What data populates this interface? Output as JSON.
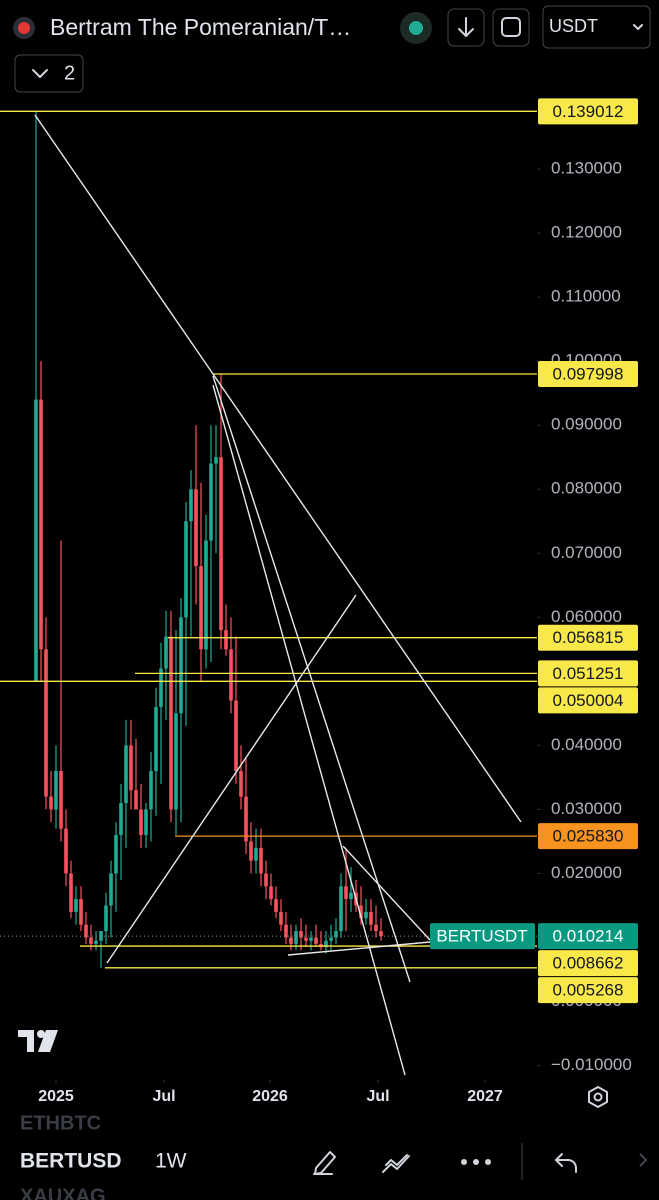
{
  "header": {
    "title": "Bertram The Pomeranian/T…",
    "badge": "2",
    "currency": "USDT"
  },
  "footer": {
    "symbols": [
      "ETHBTC",
      "BERTUSD",
      "XAUXAG"
    ],
    "interval": "1W"
  },
  "chart_data": {
    "type": "candlestick",
    "symbol": "BERTUSDT",
    "up_color": "#22ab94",
    "down_color": "#f7525f",
    "xlim": [
      -7.2,
      100.2
    ],
    "xticks": [
      {
        "value": 4,
        "label": "2025"
      },
      {
        "value": 25.6,
        "label": "Jul"
      },
      {
        "value": 46.8,
        "label": "2026"
      },
      {
        "value": 68.4,
        "label": "Jul"
      },
      {
        "value": 89.8,
        "label": "2027"
      }
    ],
    "ylim": [
      -0.01225,
      0.14156
    ],
    "yticks": [
      {
        "value": -0.01,
        "label": "−0.010000"
      },
      {
        "value": 0,
        "label": "0.000000"
      },
      {
        "value": 0.01,
        "label": "0.010000"
      },
      {
        "value": 0.02,
        "label": "0.020000"
      },
      {
        "value": 0.03,
        "label": "0.030000"
      },
      {
        "value": 0.04,
        "label": "0.040000"
      },
      {
        "value": 0.05,
        "label": "0.050000"
      },
      {
        "value": 0.06,
        "label": "0.060000"
      },
      {
        "value": 0.07,
        "label": "0.070000"
      },
      {
        "value": 0.08,
        "label": "0.080000"
      },
      {
        "value": 0.09,
        "label": "0.090000"
      },
      {
        "value": 0.1,
        "label": "0.100000"
      },
      {
        "value": 0.11,
        "label": "0.110000"
      },
      {
        "value": 0.12,
        "label": "0.120000"
      },
      {
        "value": 0.13,
        "label": "0.130000"
      }
    ],
    "candles": {
      "open": [
        0.05,
        0.094,
        0.055,
        0.032,
        0.03,
        0.036,
        0.027,
        0.02,
        0.014,
        0.016,
        0.012,
        0.01,
        0.009,
        0.0095,
        0.011,
        0.015,
        0.02,
        0.026,
        0.031,
        0.04,
        0.033,
        0.03,
        0.026,
        0.03,
        0.036,
        0.046,
        0.052,
        0.057,
        0.03,
        0.045,
        0.06,
        0.075,
        0.08,
        0.068,
        0.055,
        0.072,
        0.084,
        0.085,
        0.058,
        0.055,
        0.047,
        0.036,
        0.032,
        0.025,
        0.022,
        0.024,
        0.02,
        0.018,
        0.016,
        0.014,
        0.012,
        0.01,
        0.009,
        0.011,
        0.01,
        0.0095,
        0.01,
        0.009,
        0.0085,
        0.0095,
        0.01,
        0.011,
        0.018,
        0.016,
        0.017,
        0.015,
        0.013,
        0.014,
        0.012,
        0.011
      ],
      "high": [
        0.139012,
        0.1,
        0.06,
        0.036,
        0.04,
        0.072,
        0.03,
        0.022,
        0.018,
        0.018,
        0.014,
        0.012,
        0.011,
        0.011,
        0.017,
        0.022,
        0.028,
        0.034,
        0.044,
        0.044,
        0.041,
        0.034,
        0.031,
        0.039,
        0.049,
        0.056,
        0.061,
        0.061,
        0.058,
        0.063,
        0.078,
        0.083,
        0.09,
        0.081,
        0.076,
        0.09,
        0.09,
        0.097998,
        0.062,
        0.06,
        0.057,
        0.04,
        0.038,
        0.028,
        0.027,
        0.027,
        0.022,
        0.02,
        0.018,
        0.016,
        0.014,
        0.012,
        0.012,
        0.013,
        0.012,
        0.011,
        0.012,
        0.011,
        0.011,
        0.012,
        0.013,
        0.02,
        0.024,
        0.021,
        0.019,
        0.018,
        0.016,
        0.016,
        0.015,
        0.013
      ],
      "low": [
        0.05,
        0.05,
        0.03,
        0.028,
        0.027,
        0.025,
        0.018,
        0.013,
        0.012,
        0.011,
        0.009,
        0.008,
        0.008,
        0.005268,
        0.009,
        0.01,
        0.014,
        0.019,
        0.024,
        0.03,
        0.03,
        0.024,
        0.024,
        0.025,
        0.029,
        0.034,
        0.044,
        0.028,
        0.026,
        0.028,
        0.043,
        0.057,
        0.062,
        0.05,
        0.052,
        0.053,
        0.07,
        0.055,
        0.054,
        0.045,
        0.034,
        0.03,
        0.023,
        0.02,
        0.02,
        0.018,
        0.016,
        0.015,
        0.013,
        0.011,
        0.009,
        0.008,
        0.008,
        0.008,
        0.0085,
        0.008,
        0.0085,
        0.008,
        0.0075,
        0.008,
        0.009,
        0.01,
        0.011,
        0.014,
        0.014,
        0.012,
        0.012,
        0.011,
        0.01,
        0.0095
      ],
      "close": [
        0.094,
        0.055,
        0.032,
        0.03,
        0.036,
        0.027,
        0.02,
        0.014,
        0.016,
        0.012,
        0.01,
        0.009,
        0.0095,
        0.011,
        0.015,
        0.02,
        0.026,
        0.031,
        0.04,
        0.033,
        0.03,
        0.026,
        0.03,
        0.036,
        0.046,
        0.052,
        0.057,
        0.03,
        0.045,
        0.06,
        0.075,
        0.08,
        0.068,
        0.055,
        0.072,
        0.084,
        0.085,
        0.058,
        0.055,
        0.047,
        0.036,
        0.032,
        0.025,
        0.022,
        0.024,
        0.02,
        0.018,
        0.016,
        0.014,
        0.012,
        0.01,
        0.009,
        0.011,
        0.01,
        0.0095,
        0.01,
        0.009,
        0.0085,
        0.0095,
        0.01,
        0.011,
        0.018,
        0.016,
        0.017,
        0.015,
        0.013,
        0.014,
        0.012,
        0.011,
        0.010214
      ]
    },
    "price_labels": [
      {
        "value": 0.139012,
        "color": "#f9e84a"
      },
      {
        "value": 0.097998,
        "color": "#f9e84a"
      },
      {
        "value": 0.056815,
        "color": "#f9e84a"
      },
      {
        "value": 0.051251,
        "color": "#f9e84a"
      },
      {
        "value": 0.050004,
        "color": "#f9e84a"
      },
      {
        "value": {
          "value": 0.02583,
          "label": "0.025830"
        },
        "color": "#f7931e"
      },
      {
        "value": 0.010214,
        "color": "#089981"
      },
      {
        "value": 0.008662,
        "color": "#f9e84a"
      },
      {
        "value": 0.005268,
        "color": "#f9e84a"
      }
    ]
  }
}
